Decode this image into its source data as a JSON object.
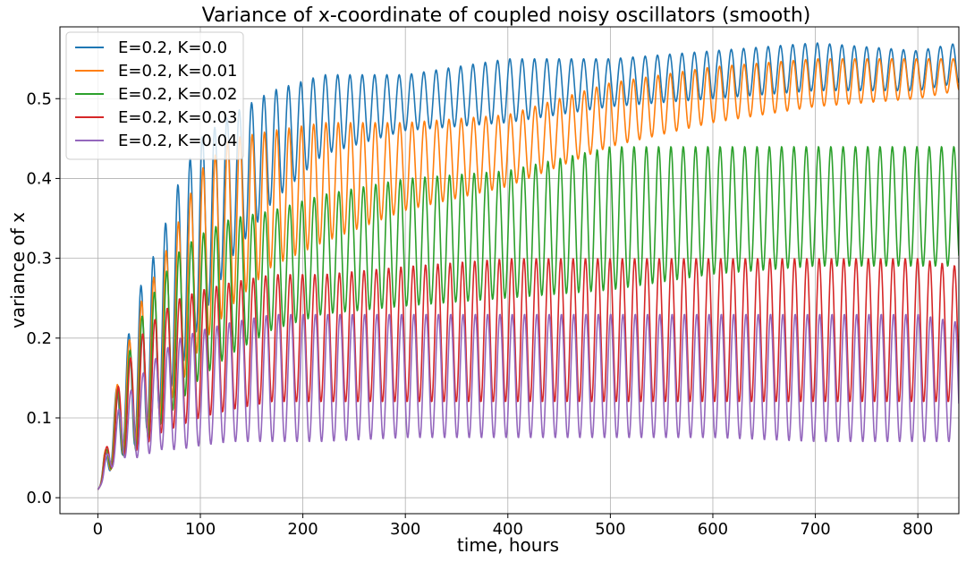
{
  "chart_data": {
    "type": "line",
    "title": "Variance of x-coordinate of coupled noisy oscillators (smooth)",
    "xlabel": "time, hours",
    "ylabel": "variance of x",
    "xlim": [
      -37,
      840
    ],
    "ylim": [
      -0.02,
      0.59
    ],
    "xticks": [
      0,
      100,
      200,
      300,
      400,
      500,
      600,
      700,
      800
    ],
    "yticks": [
      0.0,
      0.1,
      0.2,
      0.3,
      0.4,
      0.5
    ],
    "ytick_labels": [
      "0.0",
      "0.1",
      "0.2",
      "0.3",
      "0.4",
      "0.5"
    ],
    "grid": true,
    "legend_position": "upper-left",
    "oscillation_period_hours": 12,
    "series": [
      {
        "name": "E=0.2, K=0.0",
        "color": "#1f77b4",
        "envelope_t": [
          0,
          20,
          40,
          60,
          80,
          100,
          130,
          170,
          220,
          300,
          400,
          500,
          600,
          700,
          800,
          840
        ],
        "upper": [
          0.01,
          0.15,
          0.26,
          0.32,
          0.4,
          0.45,
          0.48,
          0.51,
          0.53,
          0.53,
          0.55,
          0.55,
          0.56,
          0.57,
          0.56,
          0.57
        ],
        "lower": [
          0.01,
          0.05,
          0.07,
          0.11,
          0.16,
          0.22,
          0.3,
          0.37,
          0.43,
          0.46,
          0.47,
          0.49,
          0.5,
          0.51,
          0.51,
          0.52
        ]
      },
      {
        "name": "E=0.2, K=0.01",
        "color": "#ff7f0e",
        "envelope_t": [
          0,
          20,
          40,
          60,
          80,
          100,
          130,
          170,
          220,
          300,
          400,
          500,
          600,
          700,
          800,
          840
        ],
        "upper": [
          0.01,
          0.15,
          0.24,
          0.29,
          0.35,
          0.41,
          0.45,
          0.46,
          0.47,
          0.47,
          0.48,
          0.52,
          0.54,
          0.55,
          0.55,
          0.55
        ],
        "lower": [
          0.01,
          0.05,
          0.07,
          0.1,
          0.14,
          0.19,
          0.24,
          0.29,
          0.32,
          0.36,
          0.39,
          0.44,
          0.47,
          0.49,
          0.5,
          0.51
        ]
      },
      {
        "name": "E=0.2, K=0.02",
        "color": "#2ca02c",
        "envelope_t": [
          0,
          20,
          40,
          60,
          80,
          100,
          130,
          170,
          220,
          300,
          400,
          500,
          600,
          700,
          800,
          840
        ],
        "upper": [
          0.01,
          0.14,
          0.22,
          0.27,
          0.31,
          0.33,
          0.35,
          0.36,
          0.38,
          0.4,
          0.41,
          0.44,
          0.44,
          0.44,
          0.44,
          0.44
        ],
        "lower": [
          0.01,
          0.05,
          0.06,
          0.09,
          0.12,
          0.15,
          0.18,
          0.21,
          0.23,
          0.24,
          0.25,
          0.26,
          0.28,
          0.29,
          0.29,
          0.29
        ]
      },
      {
        "name": "E=0.2, K=0.03",
        "color": "#d62728",
        "envelope_t": [
          0,
          20,
          40,
          60,
          80,
          100,
          130,
          170,
          220,
          300,
          400,
          500,
          600,
          700,
          800,
          840
        ],
        "upper": [
          0.01,
          0.14,
          0.2,
          0.23,
          0.25,
          0.26,
          0.27,
          0.28,
          0.28,
          0.29,
          0.3,
          0.3,
          0.3,
          0.3,
          0.3,
          0.29
        ],
        "lower": [
          0.01,
          0.05,
          0.06,
          0.08,
          0.09,
          0.1,
          0.11,
          0.12,
          0.12,
          0.12,
          0.12,
          0.12,
          0.12,
          0.12,
          0.12,
          0.12
        ]
      },
      {
        "name": "E=0.2, K=0.04",
        "color": "#9467bd",
        "envelope_t": [
          0,
          20,
          40,
          60,
          80,
          100,
          130,
          170,
          220,
          300,
          400,
          500,
          600,
          700,
          800,
          840
        ],
        "upper": [
          0.01,
          0.11,
          0.15,
          0.18,
          0.2,
          0.21,
          0.22,
          0.23,
          0.23,
          0.23,
          0.23,
          0.23,
          0.23,
          0.23,
          0.23,
          0.22
        ],
        "lower": [
          0.01,
          0.05,
          0.05,
          0.06,
          0.06,
          0.065,
          0.07,
          0.07,
          0.07,
          0.075,
          0.075,
          0.075,
          0.075,
          0.07,
          0.07,
          0.07
        ]
      }
    ]
  }
}
